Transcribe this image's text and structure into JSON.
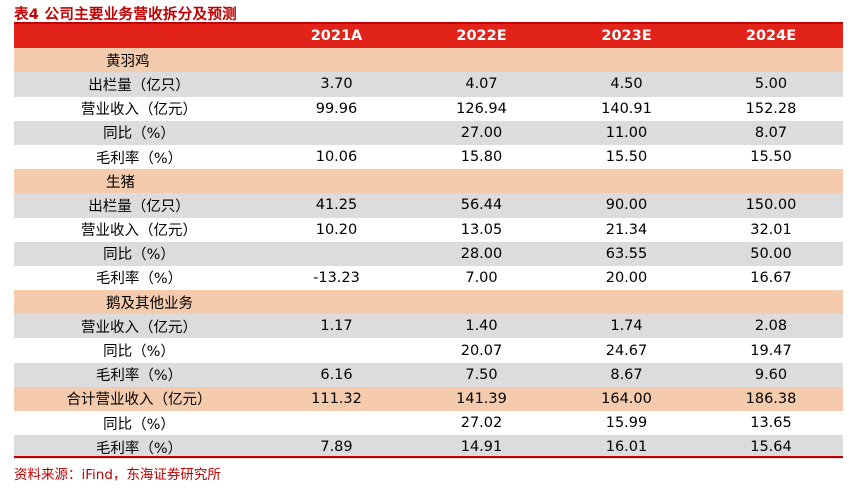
{
  "title": "表4  公司主要业务营收拆分及预测",
  "header": [
    "",
    "2021A",
    "2022E",
    "2023E",
    "2024E"
  ],
  "rows": [
    {
      "type": "sec",
      "cells": [
        "黄羽鸡",
        "",
        "",
        "",
        ""
      ]
    },
    {
      "type": "shade",
      "cells": [
        "出栏量（亿只）",
        "3.70",
        "4.07",
        "4.50",
        "5.00"
      ]
    },
    {
      "type": "plain",
      "cells": [
        "营业收入（亿元）",
        "99.96",
        "126.94",
        "140.91",
        "152.28"
      ]
    },
    {
      "type": "shade",
      "cells": [
        "同比（%）",
        "",
        "27.00",
        "11.00",
        "8.07"
      ]
    },
    {
      "type": "plain",
      "cells": [
        "毛利率（%）",
        "10.06",
        "15.80",
        "15.50",
        "15.50"
      ]
    },
    {
      "type": "sec",
      "cells": [
        "生猪",
        "",
        "",
        "",
        ""
      ]
    },
    {
      "type": "shade",
      "cells": [
        "出栏量（亿只）",
        "41.25",
        "56.44",
        "90.00",
        "150.00"
      ]
    },
    {
      "type": "plain",
      "cells": [
        "营业收入（亿元）",
        "10.20",
        "13.05",
        "21.34",
        "32.01"
      ]
    },
    {
      "type": "shade",
      "cells": [
        "同比（%）",
        "",
        "28.00",
        "63.55",
        "50.00"
      ]
    },
    {
      "type": "plain",
      "cells": [
        "毛利率（%）",
        "-13.23",
        "7.00",
        "20.00",
        "16.67"
      ]
    },
    {
      "type": "sec",
      "cells": [
        "鹅及其他业务",
        "",
        "",
        "",
        ""
      ]
    },
    {
      "type": "shade",
      "cells": [
        "营业收入（亿元）",
        "1.17",
        "1.40",
        "1.74",
        "2.08"
      ]
    },
    {
      "type": "plain",
      "cells": [
        "同比（%）",
        "",
        "20.07",
        "24.67",
        "19.47"
      ]
    },
    {
      "type": "shade",
      "cells": [
        "毛利率（%）",
        "6.16",
        "7.50",
        "8.67",
        "9.60"
      ]
    },
    {
      "type": "tot",
      "cells": [
        "合计营业收入（亿元）",
        "111.32",
        "141.39",
        "164.00",
        "186.38"
      ]
    },
    {
      "type": "plain",
      "cells": [
        "同比（%）",
        "",
        "27.02",
        "15.99",
        "13.65"
      ]
    },
    {
      "type": "shade",
      "cells": [
        "毛利率（%）",
        "7.89",
        "14.91",
        "16.01",
        "15.64"
      ]
    }
  ],
  "source": "资料来源：iFind，东海证券研究所"
}
